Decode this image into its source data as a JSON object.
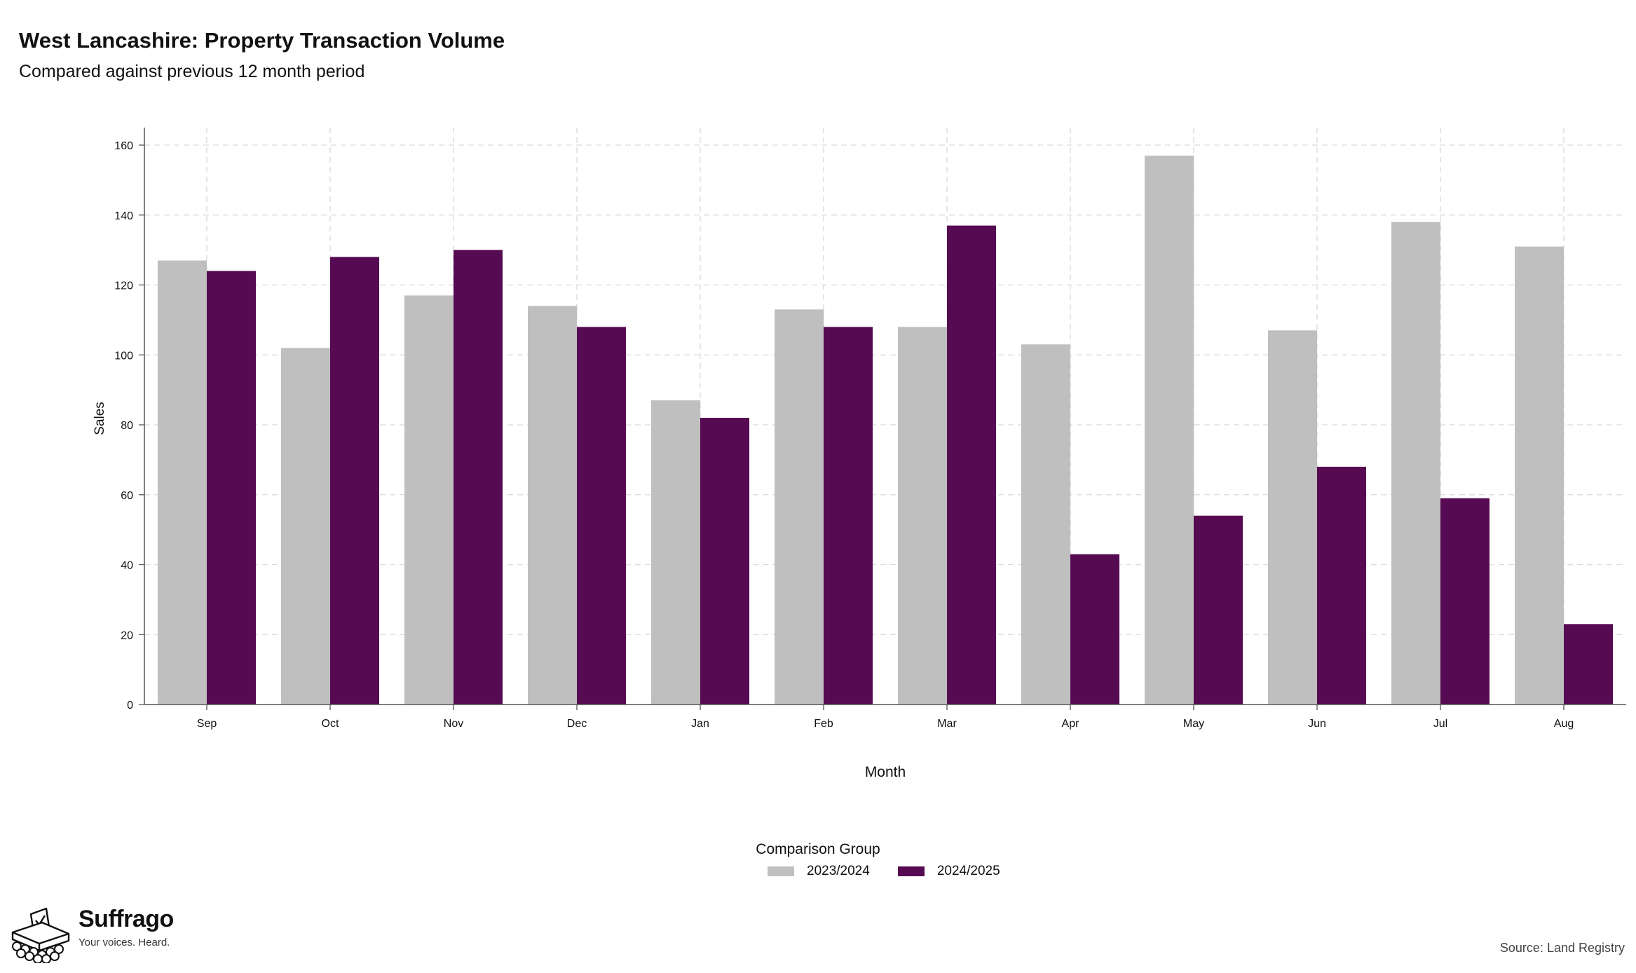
{
  "header": {
    "title": "West Lancashire: Property Transaction Volume",
    "subtitle": "Compared against previous 12 month period"
  },
  "legend": {
    "title": "Comparison Group",
    "items": [
      {
        "label": "2023/2024",
        "color": "#bfbfbf"
      },
      {
        "label": "2024/2025",
        "color": "#560a51"
      }
    ]
  },
  "branding": {
    "name": "Suffrago",
    "tagline": "Your voices. Heard.",
    "icon": "ballot-box-icon"
  },
  "footer": {
    "source": "Source: Land Registry"
  },
  "chart_data": {
    "type": "bar",
    "title": "West Lancashire: Property Transaction Volume",
    "subtitle": "Compared against previous 12 month period",
    "xlabel": "Month",
    "ylabel": "Sales",
    "ylim": [
      0,
      165
    ],
    "yticks": [
      0,
      20,
      40,
      60,
      80,
      100,
      120,
      140,
      160
    ],
    "grid": true,
    "legend_position": "bottom",
    "categories": [
      "Sep",
      "Oct",
      "Nov",
      "Dec",
      "Jan",
      "Feb",
      "Mar",
      "Apr",
      "May",
      "Jun",
      "Jul",
      "Aug"
    ],
    "series": [
      {
        "name": "2023/2024",
        "color": "#bfbfbf",
        "values": [
          127,
          102,
          117,
          114,
          87,
          113,
          108,
          103,
          157,
          107,
          138,
          131
        ]
      },
      {
        "name": "2024/2025",
        "color": "#560a51",
        "values": [
          124,
          128,
          130,
          108,
          82,
          108,
          137,
          43,
          54,
          68,
          59,
          23
        ]
      }
    ]
  }
}
